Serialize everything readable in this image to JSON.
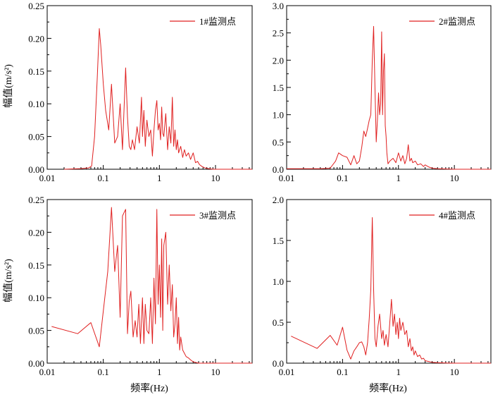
{
  "colors": {
    "series": "#e02020",
    "axis": "#000000"
  },
  "y_axis_title": "幅值(m/s²)",
  "x_axis_title": "频率(Hz)",
  "chart_data": [
    {
      "type": "line",
      "legend": "1#监测点",
      "xscale": "log",
      "xlim": [
        0.01,
        45
      ],
      "ylim": [
        0,
        0.25
      ],
      "xticks": [
        0.01,
        0.1,
        1,
        10
      ],
      "xticklabels": [
        "0.01",
        "0.1",
        "1",
        "10"
      ],
      "yticks": [
        0,
        0.05,
        0.1,
        0.15,
        0.2,
        0.25
      ],
      "yticklabels": [
        "0.00",
        "0.05",
        "0.10",
        "0.15",
        "0.20",
        "0.25"
      ],
      "x": [
        0.02,
        0.04,
        0.055,
        0.062,
        0.07,
        0.078,
        0.085,
        0.09,
        0.1,
        0.11,
        0.125,
        0.14,
        0.16,
        0.18,
        0.2,
        0.22,
        0.25,
        0.27,
        0.29,
        0.31,
        0.33,
        0.36,
        0.4,
        0.44,
        0.48,
        0.5,
        0.53,
        0.56,
        0.6,
        0.65,
        0.7,
        0.75,
        0.8,
        0.85,
        0.9,
        0.95,
        1.0,
        1.05,
        1.1,
        1.15,
        1.2,
        1.3,
        1.4,
        1.5,
        1.6,
        1.7,
        1.8,
        1.9,
        2.0,
        2.1,
        2.2,
        2.4,
        2.6,
        2.8,
        3.0,
        3.3,
        3.6,
        4.0,
        4.4,
        4.8,
        5.2,
        5.8,
        6.5,
        7.5,
        9.0,
        12.0,
        20.0,
        45.0
      ],
      "y": [
        0.0,
        0.001,
        0.002,
        0.005,
        0.05,
        0.14,
        0.215,
        0.19,
        0.13,
        0.09,
        0.06,
        0.13,
        0.04,
        0.05,
        0.1,
        0.03,
        0.155,
        0.08,
        0.035,
        0.03,
        0.045,
        0.03,
        0.065,
        0.04,
        0.11,
        0.05,
        0.09,
        0.035,
        0.075,
        0.05,
        0.06,
        0.02,
        0.06,
        0.09,
        0.105,
        0.06,
        0.07,
        0.045,
        0.095,
        0.055,
        0.05,
        0.085,
        0.03,
        0.065,
        0.04,
        0.11,
        0.035,
        0.06,
        0.03,
        0.045,
        0.025,
        0.035,
        0.018,
        0.03,
        0.02,
        0.025,
        0.015,
        0.025,
        0.01,
        0.012,
        0.007,
        0.004,
        0.002,
        0.001,
        0.0,
        0.0,
        0.0,
        0.0
      ]
    },
    {
      "type": "line",
      "legend": "2#监测点",
      "xscale": "log",
      "xlim": [
        0.01,
        45
      ],
      "ylim": [
        0,
        3.0
      ],
      "xticks": [
        0.01,
        0.1,
        1,
        10
      ],
      "xticklabels": [
        "0.01",
        "0.1",
        "1",
        "10"
      ],
      "yticks": [
        0,
        0.5,
        1.0,
        1.5,
        2.0,
        2.5,
        3.0
      ],
      "yticklabels": [
        "0.0",
        "0.5",
        "1.0",
        "1.5",
        "2.0",
        "2.5",
        "3.0"
      ],
      "x": [
        0.01,
        0.04,
        0.06,
        0.075,
        0.085,
        0.1,
        0.12,
        0.14,
        0.16,
        0.18,
        0.2,
        0.22,
        0.24,
        0.26,
        0.28,
        0.3,
        0.32,
        0.34,
        0.36,
        0.38,
        0.4,
        0.42,
        0.44,
        0.46,
        0.48,
        0.5,
        0.52,
        0.54,
        0.56,
        0.58,
        0.6,
        0.62,
        0.65,
        0.7,
        0.8,
        0.9,
        1.0,
        1.1,
        1.2,
        1.3,
        1.4,
        1.5,
        1.6,
        1.7,
        1.8,
        2.0,
        2.2,
        2.5,
        2.8,
        3.0,
        3.5,
        4.0,
        5.0,
        7.0,
        10.0,
        20.0,
        45.0
      ],
      "y": [
        0.01,
        0.01,
        0.02,
        0.15,
        0.3,
        0.25,
        0.22,
        0.08,
        0.25,
        0.1,
        0.15,
        0.4,
        0.7,
        0.6,
        0.75,
        0.9,
        1.0,
        2.0,
        2.62,
        1.5,
        0.5,
        0.9,
        1.4,
        1.0,
        1.2,
        2.52,
        1.0,
        1.8,
        2.12,
        0.8,
        0.6,
        0.3,
        0.1,
        0.15,
        0.2,
        0.12,
        0.3,
        0.15,
        0.25,
        0.1,
        0.2,
        0.45,
        0.15,
        0.2,
        0.12,
        0.15,
        0.08,
        0.1,
        0.05,
        0.08,
        0.04,
        0.02,
        0.01,
        0.005,
        0.0,
        0.0,
        0.0
      ]
    },
    {
      "type": "line",
      "legend": "3#监测点",
      "xscale": "log",
      "xlim": [
        0.01,
        45
      ],
      "ylim": [
        0,
        0.25
      ],
      "xticks": [
        0.01,
        0.1,
        1,
        10
      ],
      "xticklabels": [
        "0.01",
        "0.1",
        "1",
        "10"
      ],
      "yticks": [
        0,
        0.05,
        0.1,
        0.15,
        0.2,
        0.25
      ],
      "yticklabels": [
        "0.00",
        "0.05",
        "0.10",
        "0.15",
        "0.20",
        "0.25"
      ],
      "x": [
        0.012,
        0.035,
        0.06,
        0.085,
        0.1,
        0.12,
        0.14,
        0.16,
        0.18,
        0.2,
        0.22,
        0.25,
        0.27,
        0.29,
        0.31,
        0.34,
        0.37,
        0.4,
        0.43,
        0.46,
        0.5,
        0.53,
        0.56,
        0.6,
        0.65,
        0.7,
        0.75,
        0.8,
        0.85,
        0.9,
        0.95,
        1.0,
        1.05,
        1.1,
        1.15,
        1.2,
        1.3,
        1.4,
        1.5,
        1.6,
        1.7,
        1.8,
        1.9,
        2.0,
        2.1,
        2.2,
        2.3,
        2.4,
        2.6,
        2.8,
        3.0,
        3.3,
        3.6,
        4.0,
        5.0,
        7.0,
        10.0,
        45.0
      ],
      "y": [
        0.056,
        0.045,
        0.062,
        0.025,
        0.08,
        0.14,
        0.238,
        0.14,
        0.18,
        0.07,
        0.225,
        0.235,
        0.045,
        0.095,
        0.11,
        0.04,
        0.065,
        0.04,
        0.09,
        0.03,
        0.1,
        0.03,
        0.09,
        0.05,
        0.045,
        0.1,
        0.03,
        0.13,
        0.06,
        0.235,
        0.09,
        0.15,
        0.07,
        0.19,
        0.05,
        0.18,
        0.2,
        0.09,
        0.15,
        0.08,
        0.12,
        0.04,
        0.06,
        0.1,
        0.03,
        0.07,
        0.02,
        0.04,
        0.02,
        0.015,
        0.01,
        0.008,
        0.005,
        0.002,
        0.0,
        0.0,
        0.0,
        0.0
      ]
    },
    {
      "type": "line",
      "legend": "4#监测点",
      "xscale": "log",
      "xlim": [
        0.01,
        45
      ],
      "ylim": [
        0,
        2.0
      ],
      "xticks": [
        0.01,
        0.1,
        1,
        10
      ],
      "xticklabels": [
        "0.01",
        "0.1",
        "1",
        "10"
      ],
      "yticks": [
        0,
        0.5,
        1.0,
        1.5,
        2.0
      ],
      "yticklabels": [
        "0.0",
        "0.5",
        "1.0",
        "1.5",
        "2.0"
      ],
      "x": [
        0.012,
        0.035,
        0.06,
        0.08,
        0.1,
        0.12,
        0.14,
        0.16,
        0.18,
        0.2,
        0.22,
        0.24,
        0.26,
        0.28,
        0.3,
        0.32,
        0.34,
        0.36,
        0.38,
        0.4,
        0.43,
        0.46,
        0.5,
        0.53,
        0.56,
        0.6,
        0.65,
        0.7,
        0.75,
        0.8,
        0.85,
        0.9,
        0.95,
        1.0,
        1.05,
        1.1,
        1.15,
        1.2,
        1.3,
        1.4,
        1.5,
        1.6,
        1.7,
        1.8,
        1.9,
        2.0,
        2.2,
        2.4,
        2.6,
        2.8,
        3.0,
        3.5,
        4.0,
        5.0,
        7.0,
        10.0,
        45.0
      ],
      "y": [
        0.33,
        0.18,
        0.34,
        0.22,
        0.44,
        0.16,
        0.05,
        0.15,
        0.2,
        0.25,
        0.26,
        0.2,
        0.1,
        0.25,
        0.55,
        0.9,
        1.78,
        0.9,
        0.3,
        0.2,
        0.45,
        0.6,
        0.3,
        0.4,
        0.22,
        0.35,
        0.2,
        0.5,
        0.78,
        0.45,
        0.6,
        0.35,
        0.5,
        0.3,
        0.55,
        0.4,
        0.45,
        0.5,
        0.35,
        0.4,
        0.2,
        0.3,
        0.15,
        0.2,
        0.1,
        0.15,
        0.08,
        0.1,
        0.05,
        0.06,
        0.03,
        0.02,
        0.01,
        0.005,
        0.002,
        0.0,
        0.0
      ]
    }
  ]
}
